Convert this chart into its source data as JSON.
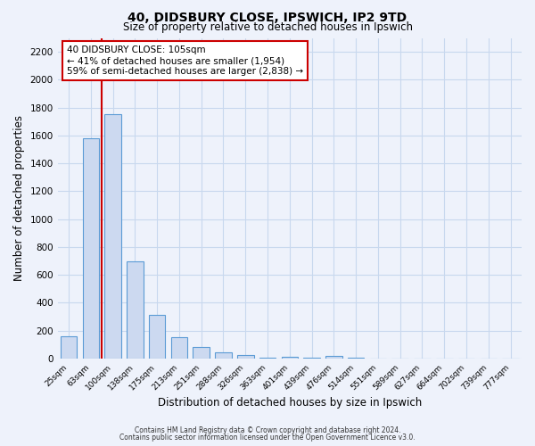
{
  "title_line1": "40, DIDSBURY CLOSE, IPSWICH, IP2 9TD",
  "title_line2": "Size of property relative to detached houses in Ipswich",
  "xlabel": "Distribution of detached houses by size in Ipswich",
  "ylabel": "Number of detached properties",
  "bar_labels": [
    "25sqm",
    "63sqm",
    "100sqm",
    "138sqm",
    "175sqm",
    "213sqm",
    "251sqm",
    "288sqm",
    "326sqm",
    "363sqm",
    "401sqm",
    "439sqm",
    "476sqm",
    "514sqm",
    "551sqm",
    "589sqm",
    "627sqm",
    "664sqm",
    "702sqm",
    "739sqm",
    "777sqm"
  ],
  "bar_values": [
    160,
    1580,
    1750,
    700,
    315,
    155,
    80,
    45,
    25,
    5,
    15,
    5,
    20,
    5,
    0,
    0,
    0,
    0,
    0,
    0,
    0
  ],
  "bar_color": "#ccd9f0",
  "bar_edge_color": "#5b9bd5",
  "grid_color": "#c8d8ee",
  "vline_color": "#cc0000",
  "annotation_title": "40 DIDSBURY CLOSE: 105sqm",
  "annotation_line1": "← 41% of detached houses are smaller (1,954)",
  "annotation_line2": "59% of semi-detached houses are larger (2,838) →",
  "annotation_box_color": "#ffffff",
  "annotation_box_edge": "#cc0000",
  "ylim": [
    0,
    2300
  ],
  "yticks": [
    0,
    200,
    400,
    600,
    800,
    1000,
    1200,
    1400,
    1600,
    1800,
    2000,
    2200
  ],
  "footer_line1": "Contains HM Land Registry data © Crown copyright and database right 2024.",
  "footer_line2": "Contains public sector information licensed under the Open Government Licence v3.0.",
  "bg_color": "#eef2fb"
}
